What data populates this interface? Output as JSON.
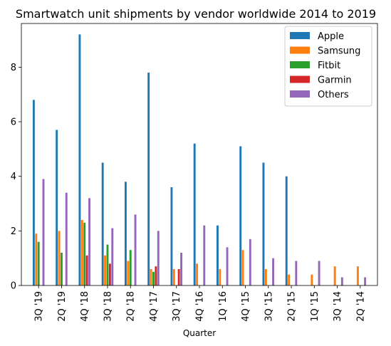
{
  "chart_data": {
    "type": "bar",
    "title": "Smartwatch unit shipments by vendor worldwide 2014 to 2019",
    "xlabel": "Quarter",
    "ylabel": "",
    "ylim": [
      0,
      9.6
    ],
    "yticks": [
      0,
      2,
      4,
      6,
      8
    ],
    "grid": false,
    "legend_position": "top-right",
    "categories": [
      "3Q '19",
      "2Q '19",
      "4Q '18",
      "3Q '18",
      "2Q '18",
      "4Q '17",
      "3Q '17",
      "4Q '16",
      "1Q '16",
      "4Q '15",
      "3Q '15",
      "2Q '15",
      "1Q '15",
      "3Q '14",
      "2Q '14"
    ],
    "series": [
      {
        "name": "Apple",
        "color": "#1f77b4",
        "values": [
          6.8,
          5.7,
          9.2,
          4.5,
          3.8,
          7.8,
          3.6,
          5.2,
          2.2,
          5.1,
          4.5,
          4.0,
          0,
          0,
          0
        ]
      },
      {
        "name": "Samsung",
        "color": "#ff7f0e",
        "values": [
          1.9,
          2.0,
          2.4,
          1.1,
          0.9,
          0.6,
          0.6,
          0.8,
          0.6,
          1.3,
          0.6,
          0.4,
          0.4,
          0.7,
          0.7
        ]
      },
      {
        "name": "Fitbit",
        "color": "#2ca02c",
        "values": [
          1.6,
          1.2,
          2.3,
          1.5,
          1.3,
          0.5,
          0,
          0,
          0,
          0,
          0,
          0,
          0,
          0,
          0
        ]
      },
      {
        "name": "Garmin",
        "color": "#d62728",
        "values": [
          0,
          0,
          1.1,
          0.8,
          0,
          0.7,
          0.6,
          0,
          0,
          0,
          0,
          0,
          0,
          0,
          0
        ]
      },
      {
        "name": "Others",
        "color": "#9467bd",
        "values": [
          3.9,
          3.4,
          3.2,
          2.1,
          2.6,
          2.0,
          1.2,
          2.2,
          1.4,
          1.7,
          1.0,
          0.9,
          0.9,
          0.3,
          0.3
        ]
      }
    ]
  }
}
